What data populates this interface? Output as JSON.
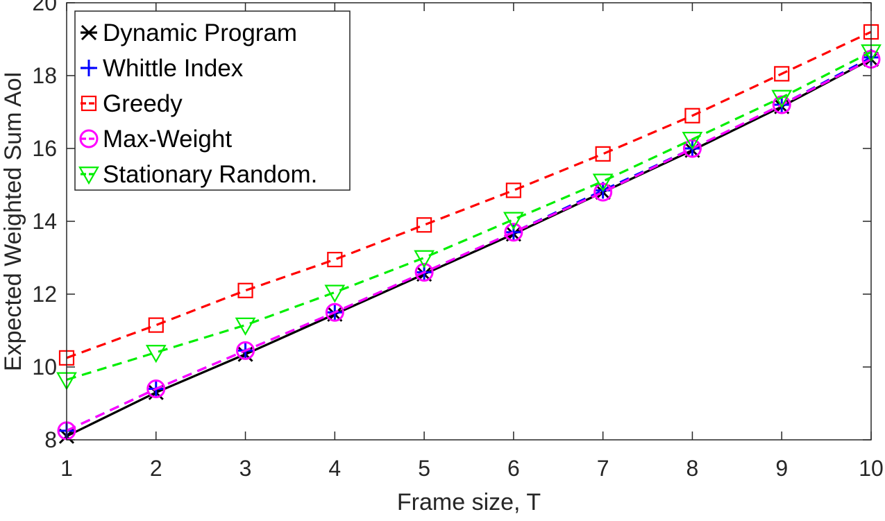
{
  "chart_data": {
    "type": "line",
    "title": "",
    "xlabel": "Frame size, T",
    "ylabel": "Expected Weighted Sum AoI",
    "xlim": [
      1,
      10
    ],
    "ylim": [
      8,
      20
    ],
    "x": [
      1,
      2,
      3,
      4,
      5,
      6,
      7,
      8,
      9,
      10
    ],
    "xticks": [
      "1",
      "2",
      "3",
      "4",
      "5",
      "6",
      "7",
      "8",
      "9",
      "10"
    ],
    "yticks": [
      "8",
      "10",
      "12",
      "14",
      "16",
      "18",
      "20"
    ],
    "ytick_values": [
      8,
      10,
      12,
      14,
      16,
      18,
      20
    ],
    "grid": false,
    "legend_position": "top-left",
    "series": [
      {
        "name": "Dynamic Program",
        "color": "#000000",
        "marker": "x",
        "line_style": "solid",
        "values": [
          8.1,
          9.3,
          10.35,
          11.45,
          12.55,
          13.65,
          14.8,
          15.95,
          17.15,
          18.45
        ]
      },
      {
        "name": "Whittle Index",
        "color": "#0000ff",
        "marker": "plus",
        "line_style": "dashed",
        "values": [
          8.25,
          9.4,
          10.45,
          11.5,
          12.6,
          13.7,
          14.85,
          16.0,
          17.2,
          18.5
        ]
      },
      {
        "name": "Greedy",
        "color": "#ff0000",
        "marker": "square",
        "line_style": "dashed",
        "values": [
          10.25,
          11.15,
          12.1,
          12.95,
          13.9,
          14.85,
          15.85,
          16.9,
          18.05,
          19.2
        ]
      },
      {
        "name": "Max-Weight",
        "color": "#ff00ff",
        "marker": "circle",
        "line_style": "dashed",
        "values": [
          8.25,
          9.4,
          10.45,
          11.5,
          12.6,
          13.7,
          14.8,
          16.0,
          17.2,
          18.45
        ]
      },
      {
        "name": "Stationary Random.",
        "color": "#00ee00",
        "marker": "triangle-down",
        "line_style": "dashed",
        "values": [
          9.65,
          10.4,
          11.15,
          12.05,
          13.0,
          14.05,
          15.1,
          16.25,
          17.4,
          18.65
        ]
      }
    ]
  }
}
